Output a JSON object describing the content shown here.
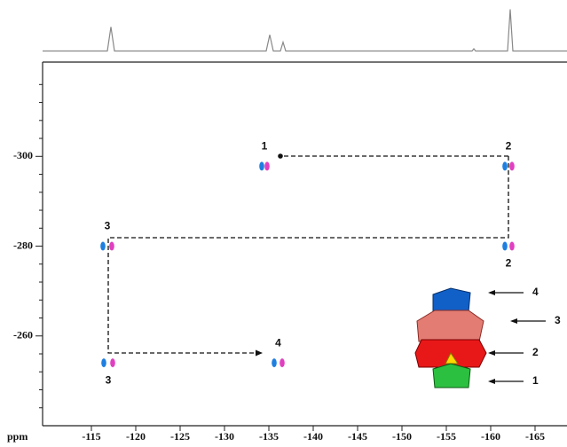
{
  "chart_data": {
    "type": "nmr2d",
    "xlim": [
      -109.5,
      -168.6
    ],
    "ylim": [
      -321,
      -240
    ],
    "xticks": [
      -115,
      -120,
      -125,
      -130,
      -135,
      -140,
      -145,
      -150,
      -155,
      -160,
      -165
    ],
    "yticks": [
      -300,
      -280,
      -260
    ],
    "yminorticks": [
      -316,
      -312,
      -308,
      -304,
      -296,
      -292,
      -288,
      -284,
      -276,
      -272,
      -268,
      -264,
      -256,
      -252,
      -248,
      -244
    ],
    "axis_unit": "ppm",
    "projection": {
      "color": "#888888",
      "ylim": [
        0,
        1.05
      ],
      "x": [
        -109.5,
        -116.8,
        -117.2,
        -117.6,
        -134.7,
        -135.1,
        -135.5,
        -136.3,
        -136.6,
        -136.9,
        -157.9,
        -158.1,
        -158.3,
        -161.9,
        -162.2,
        -162.5,
        -168.6
      ],
      "y": [
        0.05,
        0.05,
        0.6,
        0.05,
        0.05,
        0.42,
        0.05,
        0.05,
        0.25,
        0.05,
        0.05,
        0.1,
        0.05,
        0.05,
        1,
        0.05,
        0.05
      ]
    },
    "series": [
      {
        "color": "#1e7fe0",
        "x": [
          -134.2,
          -161.6,
          -161.6,
          -116.3,
          -116.4,
          -135.6
        ],
        "y": [
          -297.8,
          -297.8,
          -280,
          -280,
          -254,
          -254
        ]
      },
      {
        "color": "#e040c0",
        "x": [
          -134.8,
          -162.4,
          -162.4,
          -117.3,
          -117.4,
          -136.5
        ],
        "y": [
          -297.8,
          -297.8,
          -280,
          -280,
          -254,
          -254
        ]
      }
    ],
    "peak_labels": [
      "1",
      "2",
      "2",
      "3",
      "3",
      "4"
    ],
    "inset_labels": [
      "4",
      "3",
      "2",
      "1"
    ]
  }
}
